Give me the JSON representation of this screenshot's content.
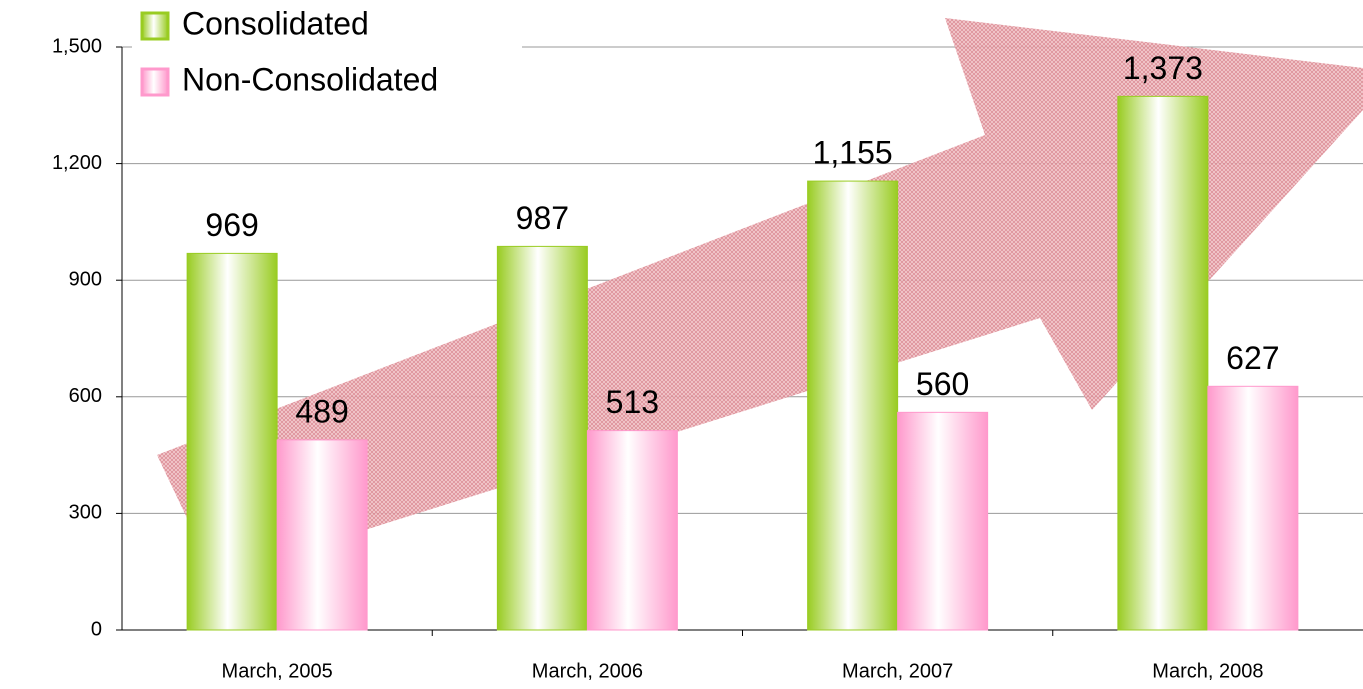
{
  "chart_data": {
    "type": "bar",
    "categories": [
      "March, 2005",
      "March, 2006",
      "March, 2007",
      "March, 2008"
    ],
    "series": [
      {
        "name": "Consolidated",
        "color": "#99cc22",
        "values": [
          969,
          987,
          1155,
          1373
        ],
        "value_labels": [
          "969",
          "987",
          "1,155",
          "1,373"
        ]
      },
      {
        "name": "Non-Consolidated",
        "color": "#ff99cc",
        "values": [
          489,
          513,
          560,
          627
        ],
        "value_labels": [
          "489",
          "513",
          "560",
          "627"
        ]
      }
    ],
    "ylim": [
      0,
      1500
    ],
    "yticks": [
      0,
      300,
      600,
      900,
      {
        "value": 1200,
        "label": "1,200"
      },
      {
        "value": 1500,
        "label": "1,500"
      }
    ],
    "grid": true
  }
}
